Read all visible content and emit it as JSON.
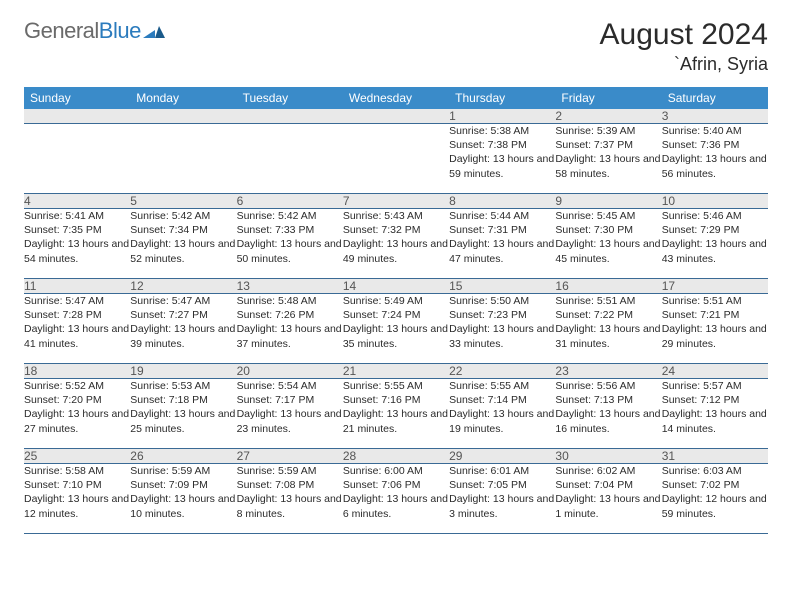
{
  "brand": {
    "part1": "General",
    "part2": "Blue"
  },
  "title": "August 2024",
  "location": "`Afrin, Syria",
  "colors": {
    "header_bg": "#3a8bc9",
    "header_fg": "#ffffff",
    "daynum_bg": "#e9e9e9",
    "row_border": "#3a6a95",
    "logo_gray": "#6a6a6a",
    "logo_blue": "#2b7bbd"
  },
  "days": [
    "Sunday",
    "Monday",
    "Tuesday",
    "Wednesday",
    "Thursday",
    "Friday",
    "Saturday"
  ],
  "weeks": [
    {
      "nums": [
        "",
        "",
        "",
        "",
        "1",
        "2",
        "3"
      ],
      "cells": [
        {
          "empty": true
        },
        {
          "empty": true
        },
        {
          "empty": true
        },
        {
          "empty": true
        },
        {
          "sunrise": "Sunrise: 5:38 AM",
          "sunset": "Sunset: 7:38 PM",
          "daylight": "Daylight: 13 hours and 59 minutes."
        },
        {
          "sunrise": "Sunrise: 5:39 AM",
          "sunset": "Sunset: 7:37 PM",
          "daylight": "Daylight: 13 hours and 58 minutes."
        },
        {
          "sunrise": "Sunrise: 5:40 AM",
          "sunset": "Sunset: 7:36 PM",
          "daylight": "Daylight: 13 hours and 56 minutes."
        }
      ]
    },
    {
      "nums": [
        "4",
        "5",
        "6",
        "7",
        "8",
        "9",
        "10"
      ],
      "cells": [
        {
          "sunrise": "Sunrise: 5:41 AM",
          "sunset": "Sunset: 7:35 PM",
          "daylight": "Daylight: 13 hours and 54 minutes."
        },
        {
          "sunrise": "Sunrise: 5:42 AM",
          "sunset": "Sunset: 7:34 PM",
          "daylight": "Daylight: 13 hours and 52 minutes."
        },
        {
          "sunrise": "Sunrise: 5:42 AM",
          "sunset": "Sunset: 7:33 PM",
          "daylight": "Daylight: 13 hours and 50 minutes."
        },
        {
          "sunrise": "Sunrise: 5:43 AM",
          "sunset": "Sunset: 7:32 PM",
          "daylight": "Daylight: 13 hours and 49 minutes."
        },
        {
          "sunrise": "Sunrise: 5:44 AM",
          "sunset": "Sunset: 7:31 PM",
          "daylight": "Daylight: 13 hours and 47 minutes."
        },
        {
          "sunrise": "Sunrise: 5:45 AM",
          "sunset": "Sunset: 7:30 PM",
          "daylight": "Daylight: 13 hours and 45 minutes."
        },
        {
          "sunrise": "Sunrise: 5:46 AM",
          "sunset": "Sunset: 7:29 PM",
          "daylight": "Daylight: 13 hours and 43 minutes."
        }
      ]
    },
    {
      "nums": [
        "11",
        "12",
        "13",
        "14",
        "15",
        "16",
        "17"
      ],
      "cells": [
        {
          "sunrise": "Sunrise: 5:47 AM",
          "sunset": "Sunset: 7:28 PM",
          "daylight": "Daylight: 13 hours and 41 minutes."
        },
        {
          "sunrise": "Sunrise: 5:47 AM",
          "sunset": "Sunset: 7:27 PM",
          "daylight": "Daylight: 13 hours and 39 minutes."
        },
        {
          "sunrise": "Sunrise: 5:48 AM",
          "sunset": "Sunset: 7:26 PM",
          "daylight": "Daylight: 13 hours and 37 minutes."
        },
        {
          "sunrise": "Sunrise: 5:49 AM",
          "sunset": "Sunset: 7:24 PM",
          "daylight": "Daylight: 13 hours and 35 minutes."
        },
        {
          "sunrise": "Sunrise: 5:50 AM",
          "sunset": "Sunset: 7:23 PM",
          "daylight": "Daylight: 13 hours and 33 minutes."
        },
        {
          "sunrise": "Sunrise: 5:51 AM",
          "sunset": "Sunset: 7:22 PM",
          "daylight": "Daylight: 13 hours and 31 minutes."
        },
        {
          "sunrise": "Sunrise: 5:51 AM",
          "sunset": "Sunset: 7:21 PM",
          "daylight": "Daylight: 13 hours and 29 minutes."
        }
      ]
    },
    {
      "nums": [
        "18",
        "19",
        "20",
        "21",
        "22",
        "23",
        "24"
      ],
      "cells": [
        {
          "sunrise": "Sunrise: 5:52 AM",
          "sunset": "Sunset: 7:20 PM",
          "daylight": "Daylight: 13 hours and 27 minutes."
        },
        {
          "sunrise": "Sunrise: 5:53 AM",
          "sunset": "Sunset: 7:18 PM",
          "daylight": "Daylight: 13 hours and 25 minutes."
        },
        {
          "sunrise": "Sunrise: 5:54 AM",
          "sunset": "Sunset: 7:17 PM",
          "daylight": "Daylight: 13 hours and 23 minutes."
        },
        {
          "sunrise": "Sunrise: 5:55 AM",
          "sunset": "Sunset: 7:16 PM",
          "daylight": "Daylight: 13 hours and 21 minutes."
        },
        {
          "sunrise": "Sunrise: 5:55 AM",
          "sunset": "Sunset: 7:14 PM",
          "daylight": "Daylight: 13 hours and 19 minutes."
        },
        {
          "sunrise": "Sunrise: 5:56 AM",
          "sunset": "Sunset: 7:13 PM",
          "daylight": "Daylight: 13 hours and 16 minutes."
        },
        {
          "sunrise": "Sunrise: 5:57 AM",
          "sunset": "Sunset: 7:12 PM",
          "daylight": "Daylight: 13 hours and 14 minutes."
        }
      ]
    },
    {
      "nums": [
        "25",
        "26",
        "27",
        "28",
        "29",
        "30",
        "31"
      ],
      "cells": [
        {
          "sunrise": "Sunrise: 5:58 AM",
          "sunset": "Sunset: 7:10 PM",
          "daylight": "Daylight: 13 hours and 12 minutes."
        },
        {
          "sunrise": "Sunrise: 5:59 AM",
          "sunset": "Sunset: 7:09 PM",
          "daylight": "Daylight: 13 hours and 10 minutes."
        },
        {
          "sunrise": "Sunrise: 5:59 AM",
          "sunset": "Sunset: 7:08 PM",
          "daylight": "Daylight: 13 hours and 8 minutes."
        },
        {
          "sunrise": "Sunrise: 6:00 AM",
          "sunset": "Sunset: 7:06 PM",
          "daylight": "Daylight: 13 hours and 6 minutes."
        },
        {
          "sunrise": "Sunrise: 6:01 AM",
          "sunset": "Sunset: 7:05 PM",
          "daylight": "Daylight: 13 hours and 3 minutes."
        },
        {
          "sunrise": "Sunrise: 6:02 AM",
          "sunset": "Sunset: 7:04 PM",
          "daylight": "Daylight: 13 hours and 1 minute."
        },
        {
          "sunrise": "Sunrise: 6:03 AM",
          "sunset": "Sunset: 7:02 PM",
          "daylight": "Daylight: 12 hours and 59 minutes."
        }
      ]
    }
  ]
}
